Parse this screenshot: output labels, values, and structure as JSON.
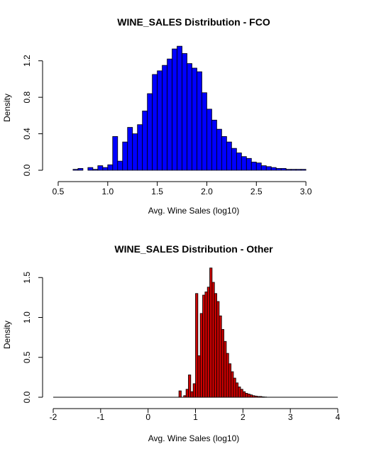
{
  "chart_data": [
    {
      "type": "bar",
      "subtype": "histogram",
      "title": "WINE_SALES Distribution - FCO",
      "xlabel": "Avg. Wine Sales (log10)",
      "ylabel": "Density",
      "xlim": [
        0.45,
        3.3
      ],
      "ylim": [
        0,
        1.4
      ],
      "xticks": [
        "0.5",
        "1.0",
        "1.5",
        "2.0",
        "2.5",
        "3.0"
      ],
      "yticks": [
        "0.0",
        "0.4",
        "0.8",
        "1.2"
      ],
      "fill_color": "#0000ff",
      "border_color": "#000000",
      "bin_start": 0.55,
      "bin_width": 0.05,
      "values": [
        0.0,
        0.0,
        0.01,
        0.02,
        0.0,
        0.03,
        0.01,
        0.05,
        0.03,
        0.06,
        0.37,
        0.1,
        0.31,
        0.47,
        0.4,
        0.5,
        0.65,
        0.84,
        1.05,
        1.09,
        1.15,
        1.22,
        1.33,
        1.36,
        1.28,
        1.17,
        1.12,
        1.08,
        0.85,
        0.67,
        0.55,
        0.45,
        0.37,
        0.31,
        0.24,
        0.19,
        0.15,
        0.13,
        0.09,
        0.08,
        0.05,
        0.04,
        0.03,
        0.02,
        0.02,
        0.01,
        0.01,
        0.01,
        0.01,
        0.0
      ]
    },
    {
      "type": "bar",
      "subtype": "histogram",
      "title": "WINE_SALES Distribution - Other",
      "xlabel": "Avg. Wine Sales (log10)",
      "ylabel": "Density",
      "xlim": [
        -2,
        4
      ],
      "ylim": [
        0,
        1.6
      ],
      "xticks": [
        "-2",
        "-1",
        "0",
        "1",
        "2",
        "3",
        "4"
      ],
      "yticks": [
        "0.0",
        "0.5",
        "1.0",
        "1.5"
      ],
      "fill_color": "#cc0000",
      "border_color": "#000000",
      "baseline_range": [
        -2,
        4
      ],
      "bin_start": 0.6,
      "bin_width": 0.05,
      "values": [
        0.0,
        0.08,
        0.0,
        0.02,
        0.1,
        0.28,
        0.07,
        0.17,
        1.3,
        0.52,
        1.05,
        1.28,
        1.32,
        1.38,
        1.62,
        1.44,
        1.3,
        1.2,
        1.02,
        0.85,
        0.7,
        0.55,
        0.42,
        0.32,
        0.24,
        0.18,
        0.13,
        0.1,
        0.07,
        0.05,
        0.04,
        0.03,
        0.02,
        0.015,
        0.01,
        0.01,
        0.005,
        0.003,
        0.0,
        0.0
      ]
    }
  ]
}
